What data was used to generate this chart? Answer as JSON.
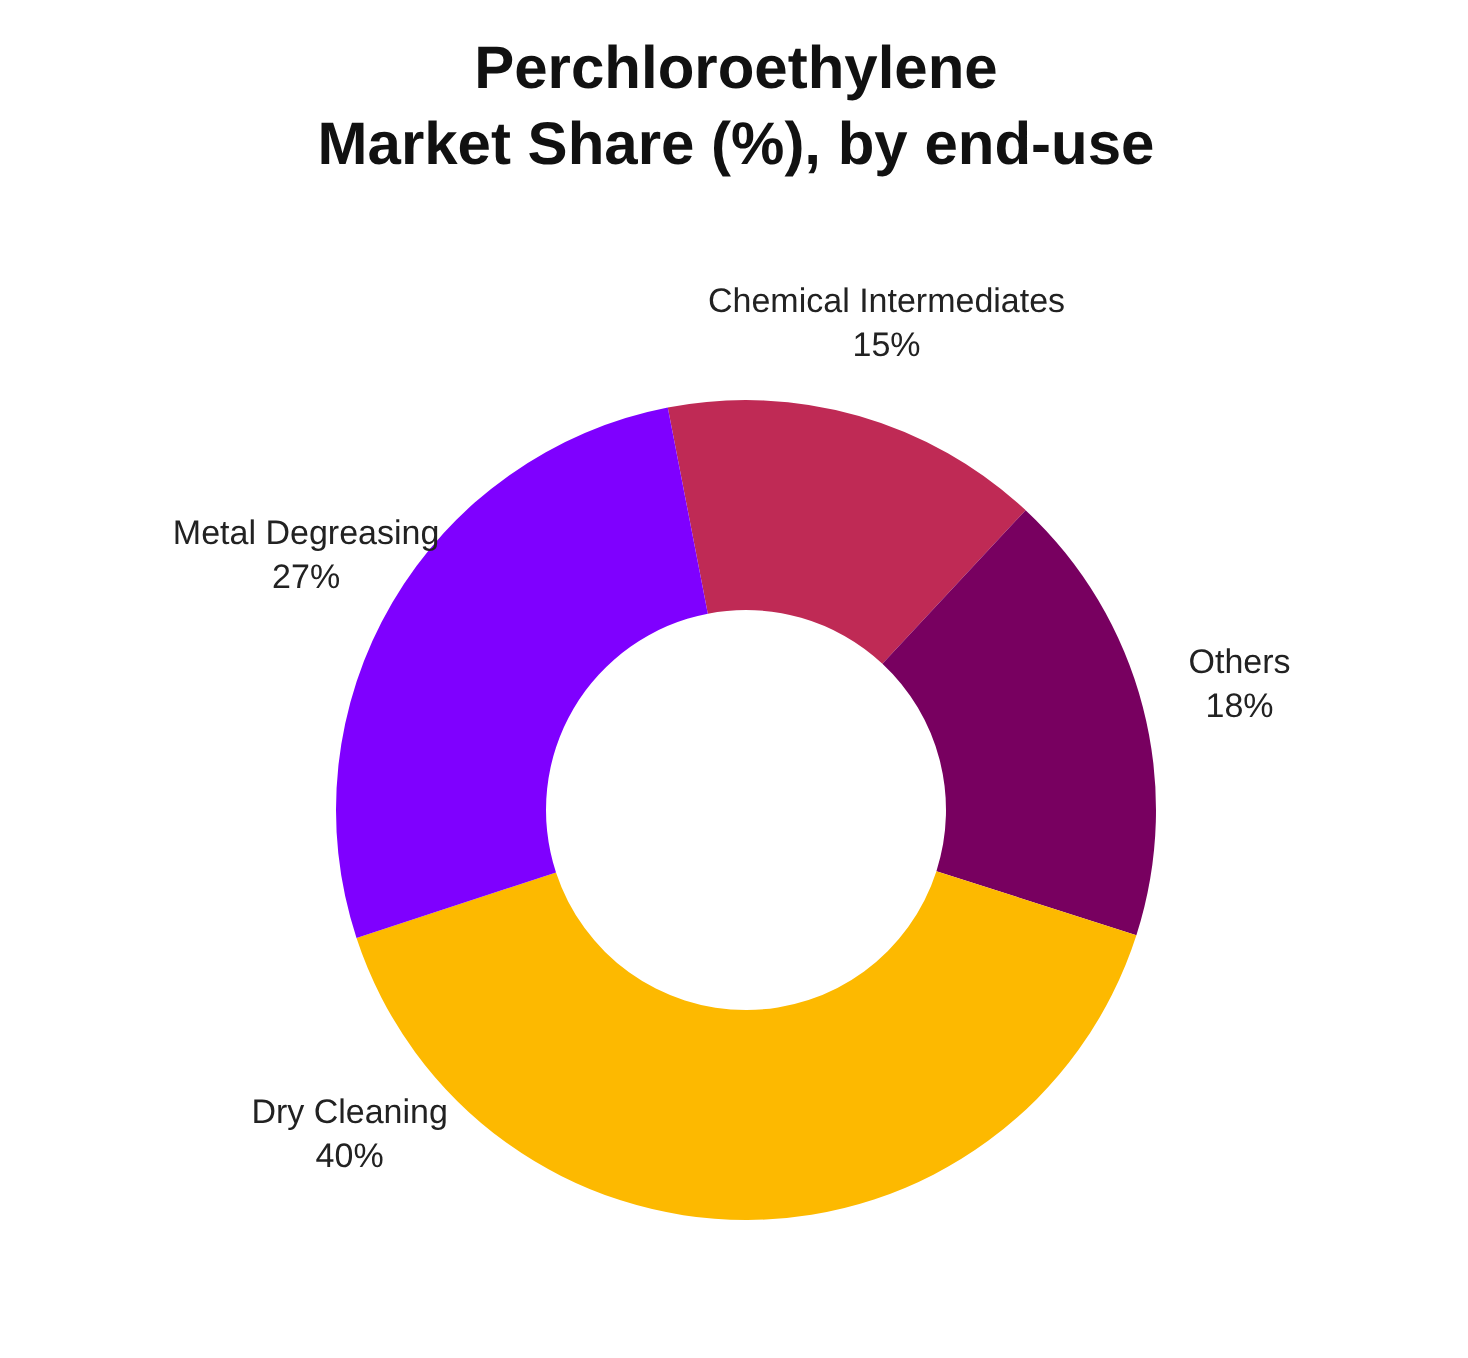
{
  "chart_data": {
    "type": "donut",
    "title": "Perchloroethylene\nMarket Share (%), by end-use",
    "categories": [
      "Chemical Intermediates",
      "Others",
      "Dry Cleaning",
      "Metal Degreasing"
    ],
    "values": [
      15,
      18,
      40,
      27
    ],
    "value_labels": [
      "15%",
      "18%",
      "40%",
      "27%"
    ],
    "colors": [
      "#bf2a55",
      "#780060",
      "#fdb900",
      "#7f00ff"
    ]
  }
}
